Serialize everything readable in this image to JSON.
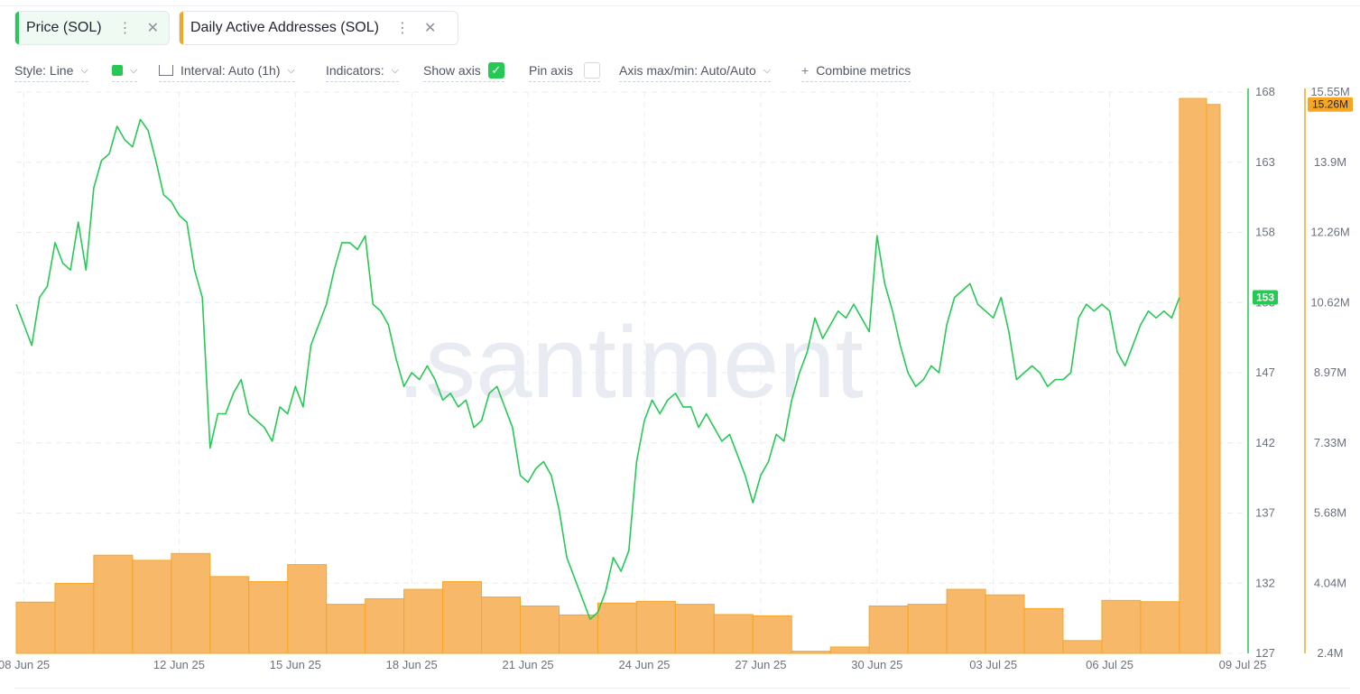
{
  "tabs": [
    {
      "label": "Price (SOL)",
      "color": "#26c953"
    },
    {
      "label": "Daily Active Addresses (SOL)",
      "color": "#f5a623"
    }
  ],
  "toolbar": {
    "style": "Style: Line",
    "interval": "Interval: Auto (1h)",
    "indicators": "Indicators:",
    "show_axis": "Show axis",
    "show_axis_checked": true,
    "pin_axis": "Pin axis",
    "pin_axis_checked": false,
    "axis_minmax": "Axis max/min: Auto/Auto",
    "combine": "Combine metrics",
    "swatch_color": "#26c953"
  },
  "watermark": ".santiment",
  "chart_data": {
    "type": "line+bar",
    "x_tick_labels": [
      "08 Jun 25",
      "12 Jun 25",
      "15 Jun 25",
      "18 Jun 25",
      "21 Jun 25",
      "24 Jun 25",
      "27 Jun 25",
      "30 Jun 25",
      "03 Jul 25",
      "06 Jul 25",
      "09 Jul 25"
    ],
    "price_axis": {
      "ticks": [
        "168",
        "163",
        "158",
        "153",
        "147",
        "142",
        "137",
        "132",
        "127"
      ],
      "range": [
        127,
        168
      ],
      "current": "153",
      "color": "#26c953"
    },
    "daa_axis": {
      "ticks": [
        "15.55M",
        "13.9M",
        "12.26M",
        "10.62M",
        "8.97M",
        "7.33M",
        "5.68M",
        "4.04M",
        "2.4M"
      ],
      "range_millions": [
        2.4,
        15.55
      ],
      "current": "15.26M",
      "color": "#f5a623"
    },
    "series": [
      {
        "name": "Price (SOL)",
        "kind": "line",
        "unit": "USD",
        "points_day_value": [
          [
            7.9,
            152.5
          ],
          [
            8.1,
            151.0
          ],
          [
            8.3,
            149.5
          ],
          [
            8.5,
            153.0
          ],
          [
            8.7,
            153.8
          ],
          [
            8.9,
            157.0
          ],
          [
            9.1,
            155.5
          ],
          [
            9.3,
            155.0
          ],
          [
            9.5,
            158.5
          ],
          [
            9.7,
            155.0
          ],
          [
            9.9,
            161.0
          ],
          [
            10.1,
            163.0
          ],
          [
            10.3,
            163.5
          ],
          [
            10.5,
            165.5
          ],
          [
            10.7,
            164.5
          ],
          [
            10.9,
            164.0
          ],
          [
            11.1,
            166.0
          ],
          [
            11.3,
            165.2
          ],
          [
            11.5,
            163.0
          ],
          [
            11.7,
            160.5
          ],
          [
            11.9,
            160.0
          ],
          [
            12.1,
            159.0
          ],
          [
            12.3,
            158.5
          ],
          [
            12.5,
            155.0
          ],
          [
            12.7,
            153.0
          ],
          [
            12.9,
            142.0
          ],
          [
            13.1,
            144.5
          ],
          [
            13.3,
            144.5
          ],
          [
            13.5,
            146.0
          ],
          [
            13.7,
            147.0
          ],
          [
            13.9,
            144.5
          ],
          [
            14.1,
            144.0
          ],
          [
            14.3,
            143.5
          ],
          [
            14.5,
            142.5
          ],
          [
            14.7,
            145.0
          ],
          [
            14.9,
            144.5
          ],
          [
            15.1,
            146.5
          ],
          [
            15.3,
            145.0
          ],
          [
            15.5,
            149.5
          ],
          [
            15.7,
            151.0
          ],
          [
            15.9,
            152.5
          ],
          [
            16.1,
            155.0
          ],
          [
            16.3,
            157.0
          ],
          [
            16.5,
            157.0
          ],
          [
            16.7,
            156.5
          ],
          [
            16.9,
            157.5
          ],
          [
            17.1,
            152.5
          ],
          [
            17.3,
            152.0
          ],
          [
            17.5,
            151.0
          ],
          [
            17.7,
            148.5
          ],
          [
            17.9,
            146.5
          ],
          [
            18.1,
            147.5
          ],
          [
            18.3,
            147.0
          ],
          [
            18.5,
            148.0
          ],
          [
            18.7,
            147.0
          ],
          [
            18.9,
            145.5
          ],
          [
            19.1,
            146.0
          ],
          [
            19.3,
            145.0
          ],
          [
            19.5,
            145.5
          ],
          [
            19.7,
            143.5
          ],
          [
            19.9,
            144.0
          ],
          [
            20.1,
            146.0
          ],
          [
            20.3,
            146.5
          ],
          [
            20.5,
            145.0
          ],
          [
            20.7,
            143.5
          ],
          [
            20.9,
            140.0
          ],
          [
            21.1,
            139.5
          ],
          [
            21.3,
            140.5
          ],
          [
            21.5,
            141.0
          ],
          [
            21.7,
            140.0
          ],
          [
            21.9,
            137.5
          ],
          [
            22.1,
            134.0
          ],
          [
            22.3,
            132.5
          ],
          [
            22.5,
            131.0
          ],
          [
            22.7,
            129.5
          ],
          [
            22.9,
            130.0
          ],
          [
            23.1,
            131.5
          ],
          [
            23.3,
            134.0
          ],
          [
            23.5,
            133.0
          ],
          [
            23.7,
            134.5
          ],
          [
            23.9,
            141.0
          ],
          [
            24.1,
            144.0
          ],
          [
            24.3,
            145.5
          ],
          [
            24.5,
            144.5
          ],
          [
            24.7,
            145.5
          ],
          [
            24.9,
            146.0
          ],
          [
            25.1,
            145.0
          ],
          [
            25.3,
            145.0
          ],
          [
            25.5,
            143.5
          ],
          [
            25.7,
            144.5
          ],
          [
            25.9,
            143.5
          ],
          [
            26.1,
            142.5
          ],
          [
            26.3,
            143.0
          ],
          [
            26.5,
            141.5
          ],
          [
            26.7,
            140.0
          ],
          [
            26.9,
            138.0
          ],
          [
            27.1,
            140.0
          ],
          [
            27.3,
            141.0
          ],
          [
            27.5,
            143.0
          ],
          [
            27.7,
            142.5
          ],
          [
            27.9,
            145.5
          ],
          [
            28.1,
            147.5
          ],
          [
            28.3,
            149.0
          ],
          [
            28.5,
            151.5
          ],
          [
            28.7,
            150.0
          ],
          [
            28.9,
            151.0
          ],
          [
            29.1,
            152.0
          ],
          [
            29.3,
            151.5
          ],
          [
            29.5,
            152.5
          ],
          [
            29.7,
            151.5
          ],
          [
            29.9,
            150.5
          ],
          [
            30.1,
            157.5
          ],
          [
            30.3,
            154.0
          ],
          [
            30.5,
            152.0
          ],
          [
            30.7,
            149.5
          ],
          [
            30.9,
            147.5
          ],
          [
            31.1,
            146.5
          ],
          [
            31.3,
            147.0
          ],
          [
            31.5,
            148.0
          ],
          [
            31.7,
            147.5
          ],
          [
            31.9,
            151.0
          ],
          [
            32.1,
            153.0
          ],
          [
            32.3,
            153.5
          ],
          [
            32.5,
            154.0
          ],
          [
            32.7,
            152.5
          ],
          [
            32.9,
            152.0
          ],
          [
            33.1,
            151.5
          ],
          [
            33.3,
            153.0
          ],
          [
            33.5,
            150.5
          ],
          [
            33.7,
            147.0
          ],
          [
            33.9,
            147.5
          ],
          [
            34.1,
            148.0
          ],
          [
            34.3,
            147.5
          ],
          [
            34.5,
            146.5
          ],
          [
            34.7,
            147.0
          ],
          [
            34.9,
            147.0
          ],
          [
            35.1,
            147.5
          ],
          [
            35.3,
            151.5
          ],
          [
            35.5,
            152.5
          ],
          [
            35.7,
            152.0
          ],
          [
            35.9,
            152.5
          ],
          [
            36.1,
            152.0
          ],
          [
            36.3,
            149.0
          ],
          [
            36.5,
            148.0
          ],
          [
            36.7,
            149.5
          ],
          [
            36.9,
            151.0
          ],
          [
            37.1,
            152.0
          ],
          [
            37.3,
            151.5
          ],
          [
            37.5,
            152.0
          ],
          [
            37.7,
            151.5
          ],
          [
            37.9,
            153.0
          ]
        ]
      },
      {
        "name": "Daily Active Addresses (SOL)",
        "kind": "bar",
        "unit": "millions",
        "daily": [
          [
            7.9,
            3.6
          ],
          [
            8.9,
            4.04
          ],
          [
            9.9,
            4.7
          ],
          [
            10.9,
            4.58
          ],
          [
            11.9,
            4.74
          ],
          [
            12.9,
            4.2
          ],
          [
            13.9,
            4.08
          ],
          [
            14.9,
            4.48
          ],
          [
            15.9,
            3.55
          ],
          [
            16.9,
            3.68
          ],
          [
            17.9,
            3.9
          ],
          [
            18.9,
            4.08
          ],
          [
            19.9,
            3.72
          ],
          [
            20.9,
            3.51
          ],
          [
            21.9,
            3.3
          ],
          [
            22.9,
            3.58
          ],
          [
            23.9,
            3.62
          ],
          [
            24.9,
            3.55
          ],
          [
            25.9,
            3.31
          ],
          [
            26.9,
            3.28
          ],
          [
            27.9,
            2.45
          ],
          [
            28.9,
            2.55
          ],
          [
            29.9,
            3.51
          ],
          [
            30.9,
            3.55
          ],
          [
            31.9,
            3.9
          ],
          [
            32.9,
            3.77
          ],
          [
            33.9,
            3.45
          ],
          [
            34.9,
            2.7
          ],
          [
            35.9,
            3.64
          ],
          [
            36.9,
            3.61
          ],
          [
            37.9,
            15.4
          ],
          [
            38.6,
            15.26
          ]
        ]
      }
    ],
    "x_range_days": [
      7.9,
      38.95
    ],
    "grid": true
  }
}
